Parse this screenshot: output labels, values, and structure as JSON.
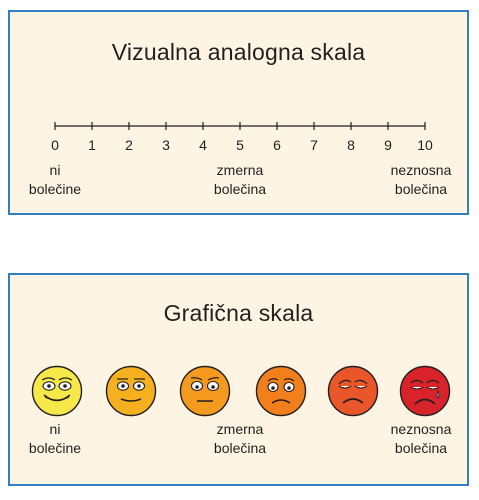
{
  "vas": {
    "title": "Vizualna analogna skala",
    "ticks": [
      "0",
      "1",
      "2",
      "3",
      "4",
      "5",
      "6",
      "7",
      "8",
      "9",
      "10"
    ],
    "label_left": [
      "ni",
      "bolečine"
    ],
    "label_mid": [
      "zmerna",
      "bolečina"
    ],
    "label_right": [
      "neznosna",
      "bolečina"
    ]
  },
  "graphic": {
    "title": "Grafična skala",
    "faces": [
      {
        "icon": "smile-face-icon",
        "color": "#f7e84a"
      },
      {
        "icon": "neutral-face-icon",
        "color": "#f4b01e"
      },
      {
        "icon": "slight-frown-face-icon",
        "color": "#f49a1e"
      },
      {
        "icon": "frown-face-icon",
        "color": "#f07f1c"
      },
      {
        "icon": "sad-face-icon",
        "color": "#e8562a"
      },
      {
        "icon": "crying-face-icon",
        "color": "#d9232a"
      }
    ],
    "label_left": [
      "ni",
      "bolečine"
    ],
    "label_mid": [
      "zmerna",
      "bolečina"
    ],
    "label_right": [
      "neznosna",
      "bolečina"
    ]
  },
  "colors": {
    "border": "#2f7fc1",
    "panel_bg": "#fdf4e3"
  }
}
